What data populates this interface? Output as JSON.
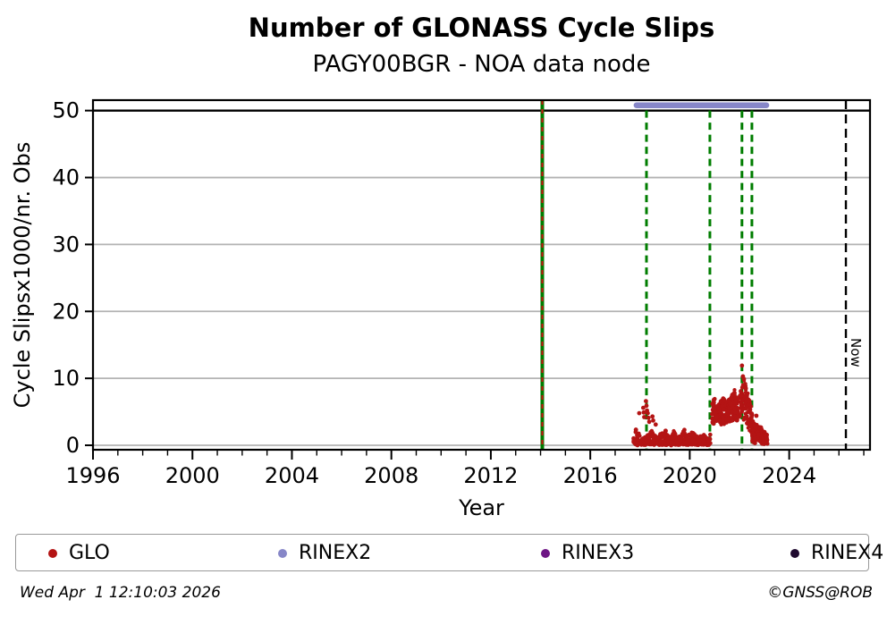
{
  "title": "Number of GLONASS Cycle Slips",
  "subtitle": "PAGY00BGR - NOA data node",
  "footer": {
    "timestamp": "Wed Apr  1 12:10:03 2026",
    "credit": "©GNSS@ROB"
  },
  "legend": {
    "items": [
      {
        "label": "GLO",
        "color": "#b41414"
      },
      {
        "label": "RINEX2",
        "color": "#8787c8"
      },
      {
        "label": "RINEX3",
        "color": "#6e1585"
      },
      {
        "label": "RINEX4",
        "color": "#200a30"
      }
    ]
  },
  "chart_data": {
    "type": "scatter",
    "title": "Number of GLONASS Cycle Slips",
    "subtitle": "PAGY00BGR - NOA data node",
    "xlabel": "Year",
    "ylabel": "Cycle Slipsx1000/nr. Obs",
    "xlim": [
      1996,
      2027.25
    ],
    "ylim": [
      -0.67,
      51.56
    ],
    "xticks": [
      1996,
      2000,
      2004,
      2008,
      2012,
      2016,
      2020,
      2024
    ],
    "x_minor_step": 1,
    "yticks": [
      0,
      10,
      20,
      30,
      40,
      50
    ],
    "grid": "horizontal",
    "grid_color": "#b3b3b3",
    "cap_line": {
      "y": 50,
      "color": "#000000"
    },
    "rinex2_span": {
      "x0": 2017.86,
      "x1": 2023.08,
      "y": 50.8,
      "color": "#8787c8",
      "series": "RINEX2"
    },
    "event_lines": [
      {
        "x": 2014.07,
        "color": "#007d00",
        "style": "solid",
        "full_height": true,
        "overlay_color": "#cc1111",
        "overlay_style": "dashed"
      },
      {
        "x": 2018.26,
        "color": "#007d00",
        "style": "dashed",
        "full_height": false
      },
      {
        "x": 2020.81,
        "color": "#007d00",
        "style": "dashed",
        "full_height": false
      },
      {
        "x": 2022.1,
        "color": "#007d00",
        "style": "dashed",
        "full_height": false
      },
      {
        "x": 2022.5,
        "color": "#007d00",
        "style": "dashed",
        "full_height": false
      }
    ],
    "now_line": {
      "x": 2026.28,
      "label": "Now",
      "color": "#000000",
      "style": "dashed"
    },
    "glo": {
      "name": "GLO",
      "color": "#b41414",
      "marker_radius": 2.1,
      "segments": [
        {
          "x0": 2017.72,
          "x1": 2020.84,
          "n": 430,
          "bias": 1.25,
          "bottom": 0.03,
          "top": [
            [
              2017.72,
              1.5
            ],
            [
              2017.82,
              2.6
            ],
            [
              2017.95,
              1.8
            ],
            [
              2018.1,
              1.2
            ],
            [
              2018.35,
              1.6
            ],
            [
              2018.5,
              2.3
            ],
            [
              2018.65,
              1.2
            ],
            [
              2018.85,
              2.0
            ],
            [
              2019.0,
              2.4
            ],
            [
              2019.15,
              1.1
            ],
            [
              2019.35,
              2.3
            ],
            [
              2019.55,
              1.2
            ],
            [
              2019.75,
              2.5
            ],
            [
              2019.95,
              1.5
            ],
            [
              2020.15,
              2.3
            ],
            [
              2020.35,
              1.0
            ],
            [
              2020.55,
              1.9
            ],
            [
              2020.7,
              0.9
            ],
            [
              2020.84,
              1.8
            ]
          ]
        },
        {
          "x0": 2020.9,
          "x1": 2022.56,
          "n": 340,
          "bias": 1.0,
          "bottom": [
            [
              2020.9,
              3.3
            ],
            [
              2021.2,
              2.9
            ],
            [
              2021.5,
              3.3
            ],
            [
              2021.8,
              3.6
            ],
            [
              2022.1,
              4.0
            ],
            [
              2022.3,
              3.1
            ],
            [
              2022.45,
              1.5
            ],
            [
              2022.56,
              0.8
            ]
          ],
          "top": [
            [
              2020.9,
              6.5
            ],
            [
              2021.0,
              7.0
            ],
            [
              2021.1,
              5.7
            ],
            [
              2021.2,
              6.4
            ],
            [
              2021.35,
              7.2
            ],
            [
              2021.5,
              6.2
            ],
            [
              2021.65,
              7.4
            ],
            [
              2021.8,
              8.3
            ],
            [
              2021.9,
              7.5
            ],
            [
              2022.0,
              8.4
            ],
            [
              2022.1,
              9.2
            ],
            [
              2022.2,
              9.8
            ],
            [
              2022.3,
              8.6
            ],
            [
              2022.4,
              7.0
            ],
            [
              2022.5,
              5.4
            ],
            [
              2022.56,
              4.4
            ]
          ]
        },
        {
          "x0": 2022.52,
          "x1": 2023.14,
          "n": 120,
          "bias": 1.1,
          "bottom": 0.15,
          "top": [
            [
              2022.52,
              2.2
            ],
            [
              2022.62,
              3.5
            ],
            [
              2022.75,
              3.3
            ],
            [
              2022.9,
              2.5
            ],
            [
              2023.02,
              2.0
            ],
            [
              2023.14,
              1.6
            ]
          ]
        }
      ],
      "points": [
        [
          2017.97,
          4.8
        ],
        [
          2018.13,
          5.6
        ],
        [
          2018.15,
          4.9
        ],
        [
          2018.17,
          4.2
        ],
        [
          2018.24,
          6.6
        ],
        [
          2018.26,
          5.9
        ],
        [
          2018.28,
          5.2
        ],
        [
          2018.31,
          4.8
        ],
        [
          2018.34,
          4.1
        ],
        [
          2018.37,
          3.5
        ],
        [
          2018.5,
          4.3
        ],
        [
          2018.53,
          3.7
        ],
        [
          2018.63,
          3.1
        ],
        [
          2022.1,
          11.9
        ],
        [
          2022.14,
          10.3
        ],
        [
          2022.18,
          9.9
        ],
        [
          2022.68,
          4.4
        ]
      ]
    }
  }
}
